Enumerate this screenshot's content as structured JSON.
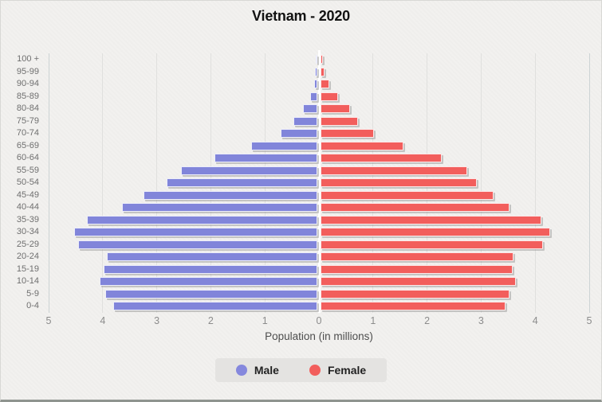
{
  "title": "Vietnam - 2020",
  "x_axis_label": "Population (in millions)",
  "legend": {
    "items": [
      {
        "label": "Male",
        "color": "#8588DD"
      },
      {
        "label": "Female",
        "color": "#F25E5C"
      }
    ]
  },
  "colors": {
    "male_bar": "#8185DA",
    "female_bar": "#F25E5C",
    "background": "#f2f1ef",
    "gridline": "#e0e0de",
    "legend_background": "#e4e3e1"
  },
  "chart_data": {
    "type": "bar",
    "subtype": "population-pyramid",
    "title": "Vietnam - 2020",
    "xlabel": "Population (in millions)",
    "units": "millions",
    "xlim_each_side": [
      0,
      5
    ],
    "x_ticks": [
      "5",
      "4",
      "3",
      "2",
      "1",
      "0",
      "1",
      "2",
      "3",
      "4",
      "5"
    ],
    "grid": true,
    "legend_position": "bottom",
    "categories_top_to_bottom": [
      "100 +",
      "95-99",
      "90-94",
      "85-89",
      "80-84",
      "75-79",
      "70-74",
      "65-69",
      "60-64",
      "55-59",
      "50-54",
      "45-49",
      "40-44",
      "35-39",
      "30-34",
      "25-29",
      "20-24",
      "15-19",
      "10-14",
      "5-9",
      "0-4"
    ],
    "series": [
      {
        "name": "Male",
        "side": "left",
        "color": "#8185DA",
        "values_top_to_bottom": [
          0.003,
          0.01,
          0.03,
          0.1,
          0.24,
          0.41,
          0.65,
          1.19,
          1.87,
          2.49,
          2.76,
          3.19,
          3.58,
          4.23,
          4.47,
          4.4,
          3.87,
          3.93,
          4.0,
          3.89,
          3.75
        ]
      },
      {
        "name": "Female",
        "side": "right",
        "color": "#F25E5C",
        "values_top_to_bottom": [
          0.01,
          0.04,
          0.13,
          0.3,
          0.52,
          0.66,
          0.96,
          1.5,
          2.21,
          2.68,
          2.86,
          3.17,
          3.47,
          4.06,
          4.22,
          4.09,
          3.54,
          3.53,
          3.59,
          3.47,
          3.39
        ]
      }
    ]
  }
}
